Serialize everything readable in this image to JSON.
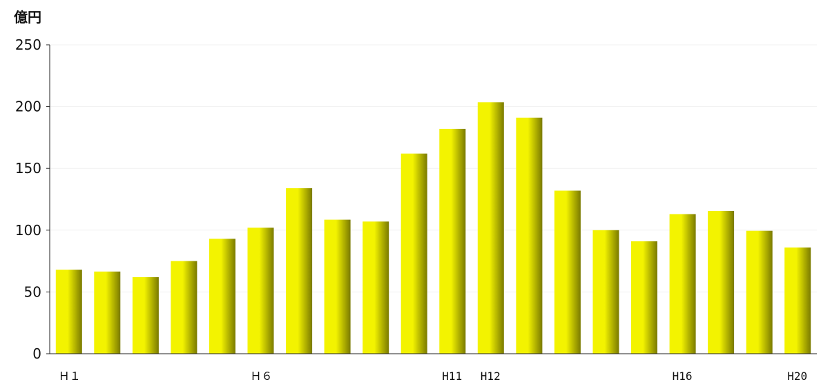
{
  "chart_data": {
    "type": "bar",
    "title": "",
    "ylabel": "億円",
    "xlabel": "",
    "ylim": [
      0,
      250
    ],
    "yticks": [
      0,
      50,
      100,
      150,
      200,
      250
    ],
    "grid": true,
    "categories": [
      "Ｈ１",
      "",
      "",
      "",
      "",
      "Ｈ６",
      "",
      "",
      "",
      "",
      "H11",
      "H12",
      "",
      "",
      "",
      "",
      "H16",
      "",
      "",
      "H20"
    ],
    "values": [
      68,
      66.5,
      62,
      75,
      93,
      102,
      134,
      108.5,
      107,
      162,
      182,
      203.5,
      191,
      132,
      100,
      91,
      113,
      115.5,
      99.5,
      86
    ],
    "bar_color_light": "#F3F300",
    "bar_color_dark": "#7A7A00"
  }
}
